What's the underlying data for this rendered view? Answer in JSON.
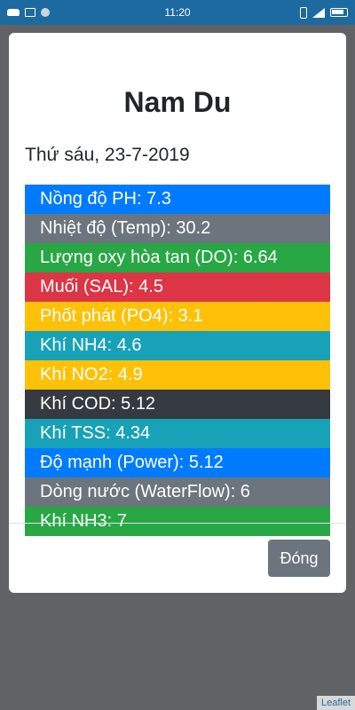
{
  "status_bar": {
    "time": "11:20",
    "icons": [
      "car-icon",
      "image-icon",
      "dot-icon",
      "phone-icon",
      "signal-icon",
      "battery-icon"
    ]
  },
  "modal": {
    "title": "Nam Du",
    "date": "Thứ sáu, 23-7-2019",
    "metrics": [
      {
        "label": "Nồng độ PH: 7.3",
        "variant": "primary",
        "color": "#007bff"
      },
      {
        "label": "Nhiệt độ (Temp): 30.2",
        "variant": "secondary",
        "color": "#6c757d"
      },
      {
        "label": "Lượng oxy hòa tan (DO): 6.64",
        "variant": "success",
        "color": "#28a745"
      },
      {
        "label": "Muối (SAL): 4.5",
        "variant": "danger",
        "color": "#dc3545"
      },
      {
        "label": "Phốt phát (PO4): 3.1",
        "variant": "warning",
        "color": "#ffc107"
      },
      {
        "label": "Khí NH4: 4.6",
        "variant": "info",
        "color": "#17a2b8"
      },
      {
        "label": "Khí NO2: 4.9",
        "variant": "warning",
        "color": "#ffc107"
      },
      {
        "label": "Khí COD: 5.12",
        "variant": "dark",
        "color": "#343a40"
      },
      {
        "label": "Khí TSS: 4.34",
        "variant": "info",
        "color": "#17a2b8"
      },
      {
        "label": "Độ mạnh (Power): 5.12",
        "variant": "primary",
        "color": "#007bff"
      },
      {
        "label": "Dòng nước (WaterFlow): 6",
        "variant": "secondary",
        "color": "#6c757d"
      },
      {
        "label": "Khí NH3: 7",
        "variant": "success",
        "color": "#28a745"
      }
    ],
    "close_label": "Đóng"
  },
  "map": {
    "attribution": "Leaflet"
  }
}
